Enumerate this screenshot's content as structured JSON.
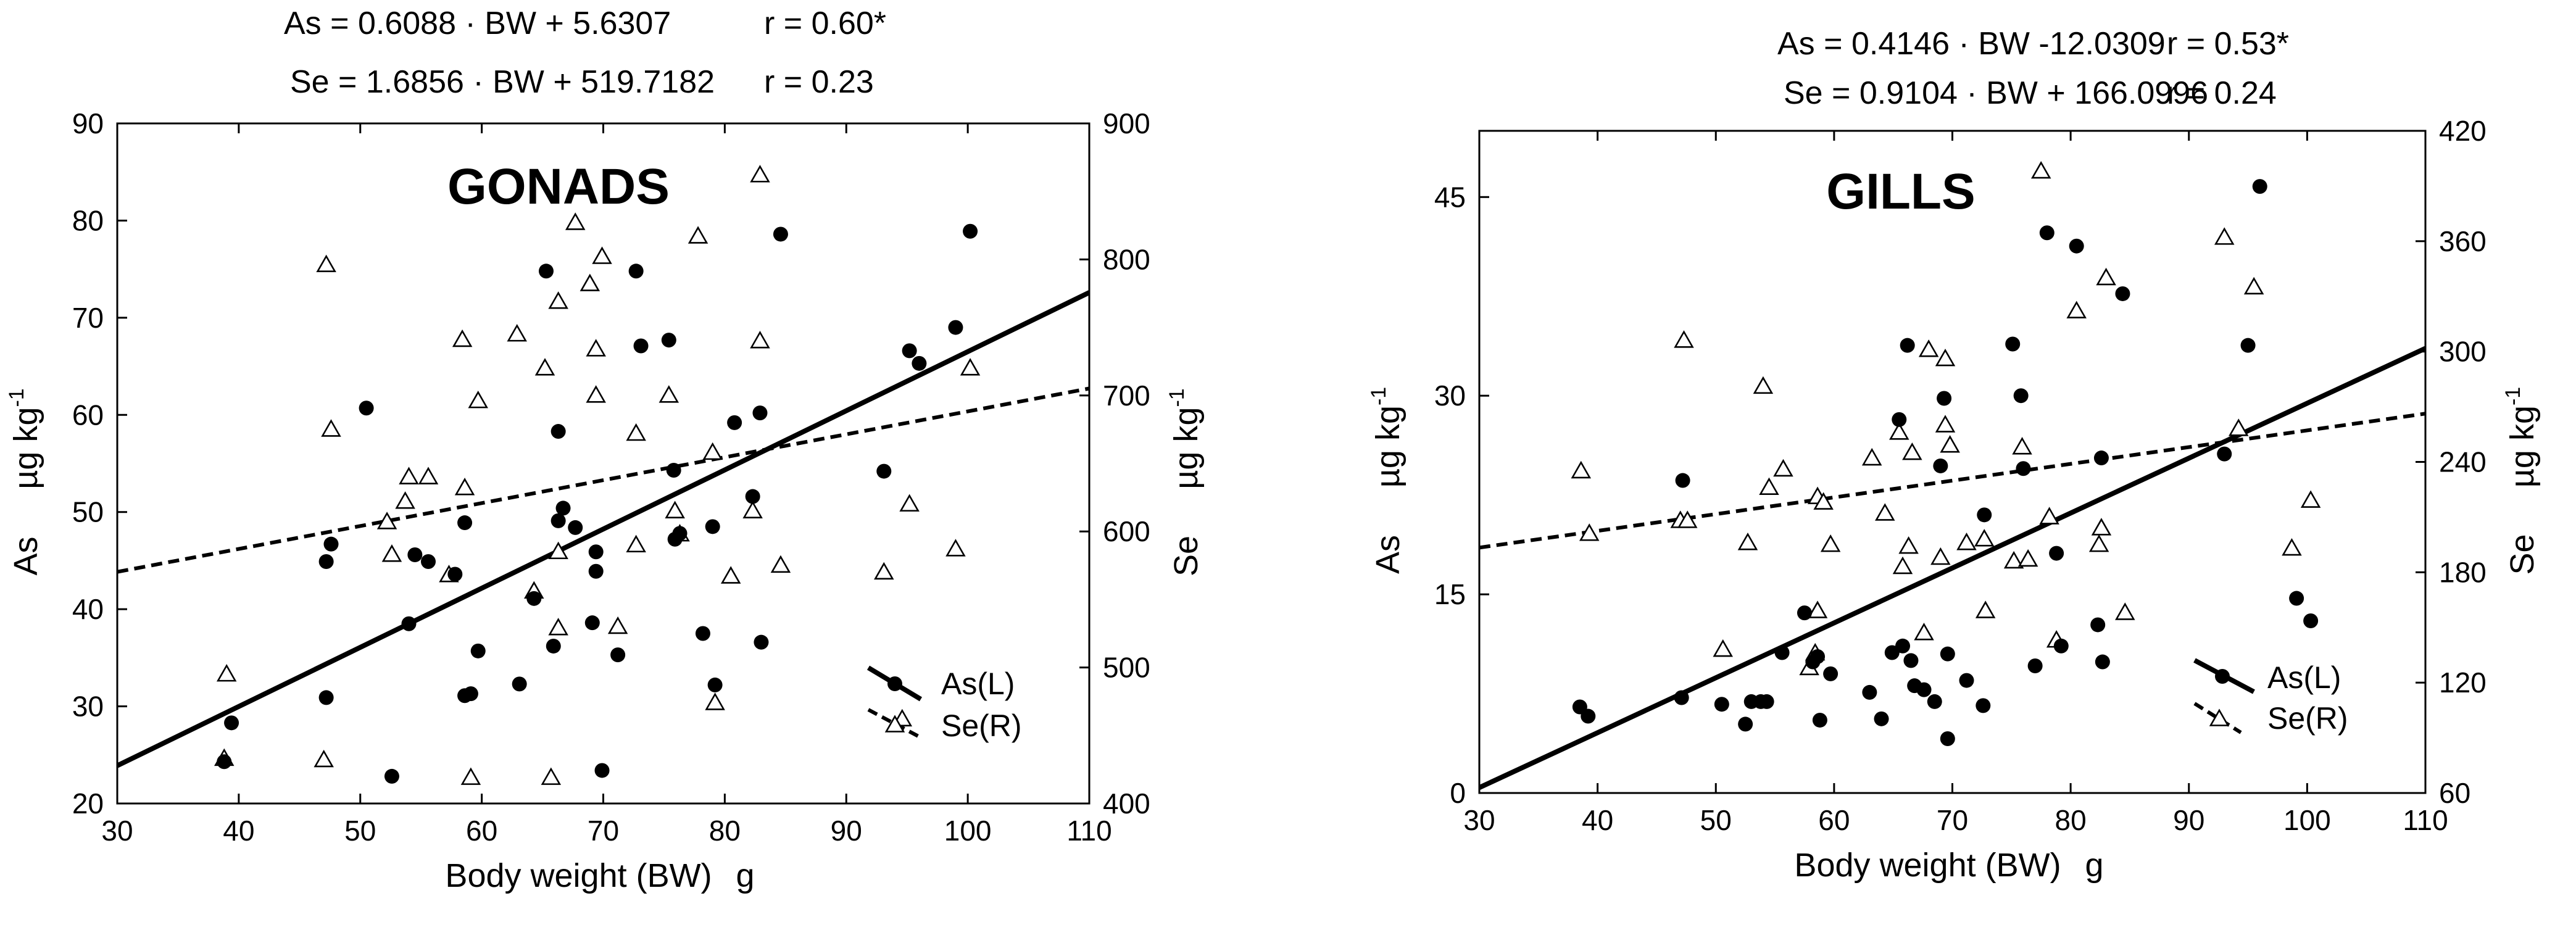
{
  "chart_data": [
    {
      "type": "scatter",
      "title": "GONADS",
      "equations": {
        "as_eq": "As = 0.6088 · BW + 5.6307",
        "as_r": "r = 0.60*",
        "se_eq": "Se = 1.6856 · BW + 519.7182",
        "se_r": "r = 0.23"
      },
      "xlabel": "Body weight (BW)",
      "xunit": "g",
      "ylabel_left": "As",
      "ylabel_right": "Se",
      "yunit_base": "µg kg",
      "yunit_exp": "-1",
      "xlim": [
        30,
        110
      ],
      "ylim_left": [
        20,
        90
      ],
      "ylim_right": [
        400,
        900
      ],
      "x_ticks": [
        30,
        40,
        50,
        60,
        70,
        80,
        90,
        100,
        110
      ],
      "y_ticks_left": [
        20,
        30,
        40,
        50,
        60,
        70,
        80,
        90
      ],
      "y_ticks_right": [
        400,
        500,
        600,
        700,
        800,
        900
      ],
      "legend": {
        "as_label": "As(L)",
        "se_label": "Se(R)",
        "position": "bottom-right"
      },
      "fit_as": {
        "slope": 0.6088,
        "intercept": 5.6307
      },
      "fit_se": {
        "slope": 1.6856,
        "intercept": 519.7182
      },
      "series": [
        {
          "name": "As(L)",
          "marker": "filled-circle",
          "axis": "left",
          "points": [
            [
              38.8,
              24.3
            ],
            [
              39.4,
              28.3
            ],
            [
              47.2,
              44.9
            ],
            [
              47.6,
              46.7
            ],
            [
              47.2,
              30.9
            ],
            [
              50.5,
              60.7
            ],
            [
              52.6,
              22.8
            ],
            [
              54,
              38.5
            ],
            [
              54.5,
              45.6
            ],
            [
              55.6,
              44.9
            ],
            [
              57.8,
              43.6
            ],
            [
              58.6,
              31.1
            ],
            [
              58.6,
              48.9
            ],
            [
              59.1,
              31.3
            ],
            [
              59.7,
              35.7
            ],
            [
              63.1,
              32.3
            ],
            [
              64.3,
              41.1
            ],
            [
              65.3,
              74.8
            ],
            [
              65.9,
              36.2
            ],
            [
              66.3,
              58.3
            ],
            [
              66.3,
              49.1
            ],
            [
              66.7,
              50.4
            ],
            [
              67.7,
              48.4
            ],
            [
              69.1,
              38.6
            ],
            [
              69.4,
              43.9
            ],
            [
              69.4,
              45.9
            ],
            [
              69.9,
              23.4
            ],
            [
              71.2,
              35.3
            ],
            [
              72.7,
              74.8
            ],
            [
              73.1,
              67.1
            ],
            [
              75.4,
              67.7
            ],
            [
              75.9,
              47.2
            ],
            [
              75.8,
              54.3
            ],
            [
              76.3,
              47.8
            ],
            [
              78.2,
              37.5
            ],
            [
              79,
              48.5
            ],
            [
              79.2,
              32.2
            ],
            [
              80.8,
              59.2
            ],
            [
              82.3,
              51.6
            ],
            [
              82.9,
              60.2
            ],
            [
              83,
              36.6
            ],
            [
              84.6,
              78.6
            ],
            [
              93.1,
              54.2
            ],
            [
              95.2,
              66.6
            ],
            [
              96,
              65.3
            ],
            [
              99,
              69
            ],
            [
              100.2,
              78.9
            ]
          ]
        },
        {
          "name": "Se(R)",
          "marker": "open-triangle",
          "axis": "right",
          "points": [
            [
              38.8,
              433
            ],
            [
              39,
              495
            ],
            [
              47,
              432
            ],
            [
              47.2,
              796
            ],
            [
              47.6,
              675
            ],
            [
              52.2,
              607
            ],
            [
              52.6,
              583
            ],
            [
              53.7,
              622
            ],
            [
              54,
              640
            ],
            [
              55.6,
              640
            ],
            [
              57.3,
              568
            ],
            [
              58.4,
              741
            ],
            [
              58.6,
              632
            ],
            [
              59.1,
              419
            ],
            [
              59.7,
              696
            ],
            [
              62.9,
              745
            ],
            [
              64.3,
              556
            ],
            [
              65.2,
              720
            ],
            [
              65.7,
              419
            ],
            [
              66.3,
              529
            ],
            [
              66.3,
              769
            ],
            [
              66.3,
              585
            ],
            [
              67.7,
              827
            ],
            [
              68.9,
              782
            ],
            [
              69.4,
              734
            ],
            [
              69.9,
              802
            ],
            [
              69.4,
              700
            ],
            [
              71.2,
              530
            ],
            [
              72.7,
              672
            ],
            [
              72.7,
              590
            ],
            [
              75.4,
              700
            ],
            [
              75.9,
              615
            ],
            [
              76.3,
              598
            ],
            [
              77.8,
              817
            ],
            [
              79,
              658
            ],
            [
              79.2,
              474
            ],
            [
              80.5,
              567
            ],
            [
              82.3,
              615
            ],
            [
              82.9,
              740
            ],
            [
              82.9,
              862
            ],
            [
              84.6,
              575
            ],
            [
              93.1,
              570
            ],
            [
              95.2,
              620
            ],
            [
              99,
              587
            ],
            [
              100.2,
              720
            ],
            [
              94.6,
              462
            ]
          ]
        }
      ]
    },
    {
      "type": "scatter",
      "title": "GILLS",
      "equations": {
        "as_eq": "As = 0.4146 · BW -12.0309",
        "as_r": "r = 0.53*",
        "se_eq": "Se = 0.9104 · BW + 166.0996",
        "se_r": "r = 0.24"
      },
      "xlabel": "Body weight (BW)",
      "xunit": "g",
      "ylabel_left": "As",
      "ylabel_right": "Se",
      "yunit_base": "µg kg",
      "yunit_exp": "-1",
      "xlim": [
        30,
        110
      ],
      "ylim_left": [
        0,
        50
      ],
      "ylim_right": [
        60,
        420
      ],
      "x_ticks": [
        30,
        40,
        50,
        60,
        70,
        80,
        90,
        100,
        110
      ],
      "y_ticks_left": [
        0,
        15,
        30,
        45
      ],
      "y_ticks_right": [
        60,
        120,
        180,
        240,
        300,
        360,
        420
      ],
      "legend": {
        "as_label": "As(L)",
        "se_label": "Se(R)",
        "position": "bottom-right"
      },
      "fit_as": {
        "slope": 0.4146,
        "intercept": -12.0309
      },
      "fit_se": {
        "slope": 0.9104,
        "intercept": 166.0996
      },
      "series": [
        {
          "name": "As(L)",
          "marker": "filled-circle",
          "axis": "left",
          "points": [
            [
              38.5,
              6.5
            ],
            [
              39.2,
              5.8
            ],
            [
              47.1,
              7.2
            ],
            [
              47.2,
              23.6
            ],
            [
              50.5,
              6.7
            ],
            [
              52.5,
              5.2
            ],
            [
              53,
              6.9
            ],
            [
              53.8,
              6.9
            ],
            [
              54.3,
              6.9
            ],
            [
              55.6,
              10.6
            ],
            [
              57.5,
              13.6
            ],
            [
              58.2,
              9.9
            ],
            [
              58.6,
              10.3
            ],
            [
              58.8,
              5.5
            ],
            [
              59.7,
              9
            ],
            [
              63,
              7.6
            ],
            [
              64,
              5.6
            ],
            [
              64.9,
              10.6
            ],
            [
              65.5,
              28.2
            ],
            [
              65.8,
              11.1
            ],
            [
              66.2,
              33.8
            ],
            [
              66.5,
              10
            ],
            [
              66.8,
              8.1
            ],
            [
              67.6,
              7.8
            ],
            [
              68.5,
              6.9
            ],
            [
              69,
              24.7
            ],
            [
              69.3,
              29.8
            ],
            [
              69.6,
              10.5
            ],
            [
              69.6,
              4.1
            ],
            [
              71.2,
              8.5
            ],
            [
              72.6,
              6.6
            ],
            [
              72.7,
              21
            ],
            [
              75.1,
              33.9
            ],
            [
              75.8,
              30
            ],
            [
              76,
              24.5
            ],
            [
              77,
              9.6
            ],
            [
              78,
              42.3
            ],
            [
              78.8,
              18.1
            ],
            [
              79.2,
              11.1
            ],
            [
              80.5,
              41.3
            ],
            [
              82.3,
              12.7
            ],
            [
              82.6,
              25.3
            ],
            [
              82.7,
              9.9
            ],
            [
              84.4,
              37.7
            ],
            [
              93,
              25.6
            ],
            [
              95,
              33.8
            ],
            [
              96,
              45.8
            ],
            [
              99.1,
              14.7
            ],
            [
              100.3,
              13
            ]
          ]
        },
        {
          "name": "Se(R)",
          "marker": "open-triangle",
          "axis": "right",
          "points": [
            [
              38.6,
              235
            ],
            [
              39.3,
              201
            ],
            [
              47,
              208
            ],
            [
              47.3,
              306
            ],
            [
              47.6,
              208
            ],
            [
              50.6,
              138
            ],
            [
              52.7,
              196
            ],
            [
              54,
              281
            ],
            [
              54.5,
              226
            ],
            [
              55.7,
              236
            ],
            [
              57.9,
              128
            ],
            [
              58.4,
              136
            ],
            [
              58.6,
              159
            ],
            [
              58.6,
              221
            ],
            [
              59.1,
              218
            ],
            [
              59.7,
              195
            ],
            [
              63.2,
              242
            ],
            [
              64.3,
              212
            ],
            [
              65.5,
              256
            ],
            [
              65.8,
              183
            ],
            [
              66.3,
              194
            ],
            [
              66.6,
              245
            ],
            [
              67.6,
              147
            ],
            [
              68,
              301
            ],
            [
              69,
              188
            ],
            [
              69.4,
              260
            ],
            [
              69.4,
              296
            ],
            [
              69.8,
              249
            ],
            [
              71.2,
              196
            ],
            [
              72.7,
              198
            ],
            [
              72.8,
              159
            ],
            [
              75.2,
              186
            ],
            [
              75.9,
              248
            ],
            [
              76.4,
              187
            ],
            [
              77.5,
              398
            ],
            [
              78.2,
              210
            ],
            [
              78.8,
              143
            ],
            [
              80.5,
              322
            ],
            [
              82.4,
              195
            ],
            [
              82.6,
              204
            ],
            [
              83,
              340
            ],
            [
              84.6,
              158
            ],
            [
              93,
              362
            ],
            [
              94.2,
              258
            ],
            [
              95.5,
              335
            ],
            [
              98.7,
              193
            ],
            [
              100.3,
              219
            ]
          ]
        }
      ]
    }
  ]
}
